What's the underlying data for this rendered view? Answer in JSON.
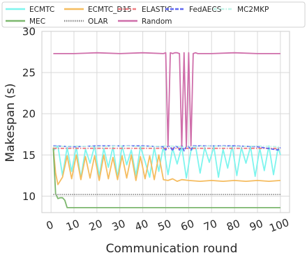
{
  "chart_data": {
    "type": "line",
    "title": "",
    "xlabel": "Communication round",
    "ylabel": "Makespan (s)",
    "xlim": [
      -4,
      104
    ],
    "ylim": [
      8,
      30
    ],
    "xticks": [
      0,
      10,
      20,
      30,
      40,
      50,
      60,
      70,
      80,
      90,
      100
    ],
    "xtick_labels": [
      "0",
      "10",
      "20",
      "30",
      "40",
      "50",
      "60",
      "70",
      "80",
      "90",
      "100"
    ],
    "yticks": [
      10,
      15,
      20,
      25,
      30
    ],
    "ytick_labels": [
      "10",
      "15",
      "20",
      "25",
      "30"
    ],
    "grid": true,
    "legend_placement": "top",
    "legend_columns": 5,
    "series": [
      {
        "name": "ECMTC",
        "color": "#7ef5ee",
        "style": "line",
        "x": [
          1,
          3,
          5,
          7,
          9,
          11,
          13,
          15,
          17,
          19,
          21,
          23,
          25,
          27,
          29,
          31,
          33,
          35,
          37,
          39,
          41,
          43,
          45,
          47,
          49,
          51,
          53,
          55,
          57,
          59,
          61,
          63,
          65,
          67,
          69,
          71,
          73,
          75,
          77,
          79,
          81,
          83,
          85,
          87,
          89,
          91,
          93,
          95,
          97,
          99,
          100
        ],
        "y": [
          15.5,
          16.1,
          12.5,
          15.9,
          13.0,
          16.0,
          12.2,
          15.7,
          14.0,
          16.1,
          12.4,
          15.8,
          13.5,
          16.0,
          12.3,
          16.1,
          13.8,
          15.6,
          12.5,
          16.0,
          14.2,
          12.3,
          15.9,
          13.0,
          16.1,
          12.6,
          15.8,
          13.9,
          16.0,
          12.2,
          15.5,
          16.1,
          12.8,
          15.9,
          14.1,
          16.0,
          12.3,
          15.7,
          13.4,
          16.1,
          12.5,
          15.9,
          14.0,
          16.0,
          12.4,
          15.8,
          13.1,
          16.1,
          12.6,
          15.9,
          15.0
        ]
      },
      {
        "name": "ECMTC_D15",
        "color": "#f5bc5f",
        "style": "line",
        "x": [
          1,
          2,
          3,
          5,
          7,
          9,
          11,
          13,
          15,
          17,
          19,
          21,
          23,
          25,
          27,
          29,
          31,
          33,
          35,
          37,
          39,
          41,
          43,
          45,
          47,
          49,
          51,
          53,
          55,
          57,
          60,
          65,
          70,
          75,
          80,
          85,
          90,
          95,
          100
        ],
        "y": [
          15.9,
          12.8,
          11.4,
          12.3,
          14.9,
          12.1,
          15.0,
          12.0,
          14.8,
          12.2,
          14.9,
          11.9,
          15.0,
          12.1,
          14.7,
          12.0,
          14.9,
          12.2,
          15.0,
          11.9,
          14.8,
          12.1,
          14.9,
          12.0,
          15.0,
          12.0,
          11.9,
          12.1,
          11.8,
          12.0,
          11.9,
          11.8,
          11.9,
          11.8,
          11.9,
          11.8,
          11.9,
          11.8,
          11.9
        ]
      },
      {
        "name": "ELASTIC",
        "color": "#f07d82",
        "style": "dashdot",
        "y_const": 15.8,
        "x_range": [
          1,
          100
        ]
      },
      {
        "name": "FedAECS",
        "color": "#5e66f0",
        "style": "dashed",
        "x": [
          1,
          10,
          20,
          30,
          40,
          49,
          50,
          51,
          52,
          53,
          54,
          55,
          56,
          57,
          58,
          59,
          60,
          61,
          62,
          63,
          70,
          80,
          90,
          99,
          100
        ],
        "y": [
          16.1,
          16.0,
          16.1,
          16.1,
          16.1,
          16.0,
          15.6,
          16.1,
          16.0,
          15.5,
          16.1,
          16.0,
          15.6,
          16.2,
          15.5,
          16.1,
          16.0,
          15.6,
          16.1,
          16.1,
          16.1,
          16.1,
          16.0,
          15.6,
          15.9
        ]
      },
      {
        "name": "MC2MKP",
        "color": "#c2f5e8",
        "style": "dashdot",
        "x": [
          1,
          10,
          20,
          30,
          40,
          50,
          60,
          70,
          80,
          90,
          100
        ],
        "y": [
          16.0,
          16.1,
          16.0,
          16.1,
          16.0,
          16.1,
          16.0,
          16.1,
          16.0,
          16.1,
          16.0
        ]
      },
      {
        "name": "MEC",
        "color": "#7cb76d",
        "style": "line",
        "x": [
          1,
          2,
          3,
          4,
          5,
          6,
          7,
          8,
          10,
          20,
          30,
          40,
          50,
          60,
          70,
          80,
          90,
          100
        ],
        "y": [
          15.8,
          10.3,
          9.7,
          9.8,
          9.8,
          9.5,
          8.6,
          8.6,
          8.6,
          8.6,
          8.6,
          8.6,
          8.6,
          8.6,
          8.6,
          8.6,
          8.6,
          8.6
        ]
      },
      {
        "name": "OLAR",
        "color": "#8d8d8d",
        "style": "dotted",
        "y_const": 10.2,
        "x_range": [
          1,
          100
        ]
      },
      {
        "name": "Random",
        "color": "#cf6eaa",
        "style": "line",
        "x": [
          1,
          10,
          20,
          30,
          40,
          49,
          50,
          51,
          52,
          53,
          54,
          55,
          56,
          57,
          58,
          59,
          60,
          61,
          62,
          63,
          64,
          70,
          80,
          90,
          100
        ],
        "y": [
          27.3,
          27.3,
          27.4,
          27.3,
          27.4,
          27.3,
          27.4,
          16.1,
          27.4,
          27.3,
          27.4,
          27.4,
          27.3,
          16.1,
          27.4,
          16.0,
          27.4,
          16.1,
          27.3,
          27.4,
          27.3,
          27.3,
          27.4,
          27.3,
          27.3
        ]
      }
    ]
  }
}
